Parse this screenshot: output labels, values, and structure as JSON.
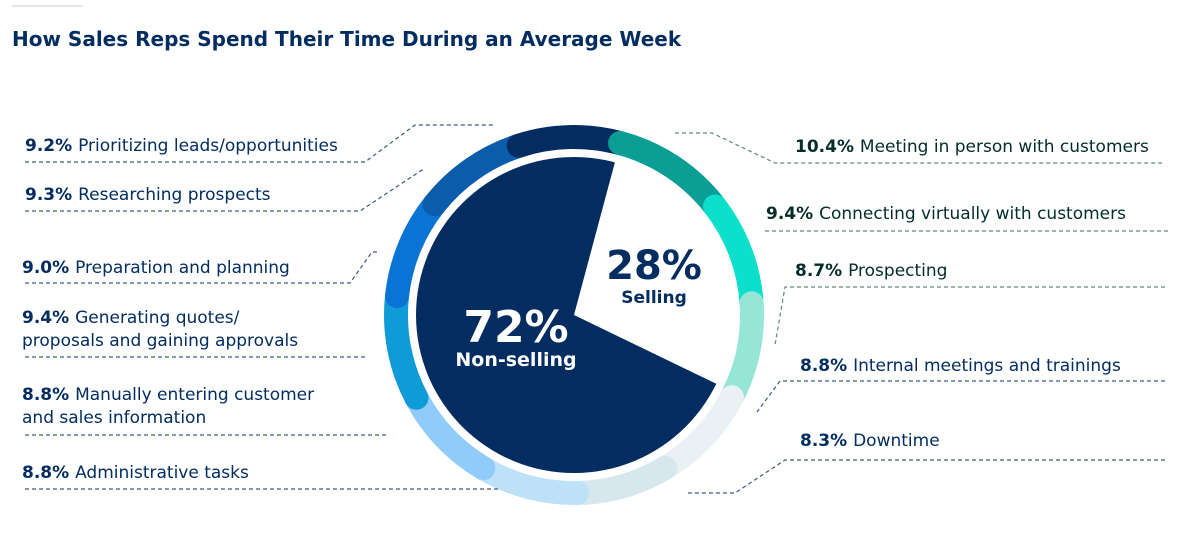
{
  "chart_data": {
    "type": "pie",
    "title": "How Sales Reps Spend Their Time During an Average Week",
    "groups": [
      {
        "name": "Selling",
        "pct_label": "28%",
        "value": 28
      },
      {
        "name": "Non-selling",
        "pct_label": "72%",
        "value": 72
      }
    ],
    "slices": [
      {
        "label": "Meeting in person with customers",
        "pct_label": "10.4%",
        "value": 10.4,
        "group": "Selling",
        "color": "#0a9e95"
      },
      {
        "label": "Connecting virtually with customers",
        "pct_label": "9.4%",
        "value": 9.4,
        "group": "Selling",
        "color": "#0ce0cc"
      },
      {
        "label": "Prospecting",
        "pct_label": "8.7%",
        "value": 8.7,
        "group": "Selling",
        "color": "#96e6d8"
      },
      {
        "label": "Internal meetings and trainings",
        "pct_label": "8.8%",
        "value": 8.8,
        "group": "Non-selling",
        "color": "#eaf1f4"
      },
      {
        "label": "Downtime",
        "pct_label": "8.3%",
        "value": 8.3,
        "group": "Non-selling",
        "color": "#d6e7ee"
      },
      {
        "label": "Administrative tasks",
        "pct_label": "8.8%",
        "value": 8.8,
        "group": "Non-selling",
        "color": "#bde2f7"
      },
      {
        "label": "Manually entering customer and sales information",
        "lines": [
          "Manually entering customer",
          "and sales information"
        ],
        "pct_label": "8.8%",
        "value": 8.8,
        "group": "Non-selling",
        "color": "#8fcbfb"
      },
      {
        "label": "Generating quotes/ proposals and gaining approvals",
        "lines": [
          "Generating quotes/",
          "proposals and gaining approvals"
        ],
        "pct_label": "9.4%",
        "value": 9.4,
        "group": "Non-selling",
        "color": "#0f9bd7"
      },
      {
        "label": "Preparation and planning",
        "pct_label": "9.0%",
        "value": 9.0,
        "group": "Non-selling",
        "color": "#0a74d5"
      },
      {
        "label": "Researching prospects",
        "pct_label": "9.3%",
        "value": 9.3,
        "group": "Non-selling",
        "color": "#0b5cab"
      },
      {
        "label": "Prioritizing leads/opportunities",
        "pct_label": "9.2%",
        "value": 9.2,
        "group": "Non-selling",
        "color": "#032d60"
      }
    ],
    "colors": {
      "navy": "#032d60",
      "selling_text": "#032d2a",
      "leader_left": "#3a5a80",
      "leader_right": "#5f8a86"
    }
  }
}
